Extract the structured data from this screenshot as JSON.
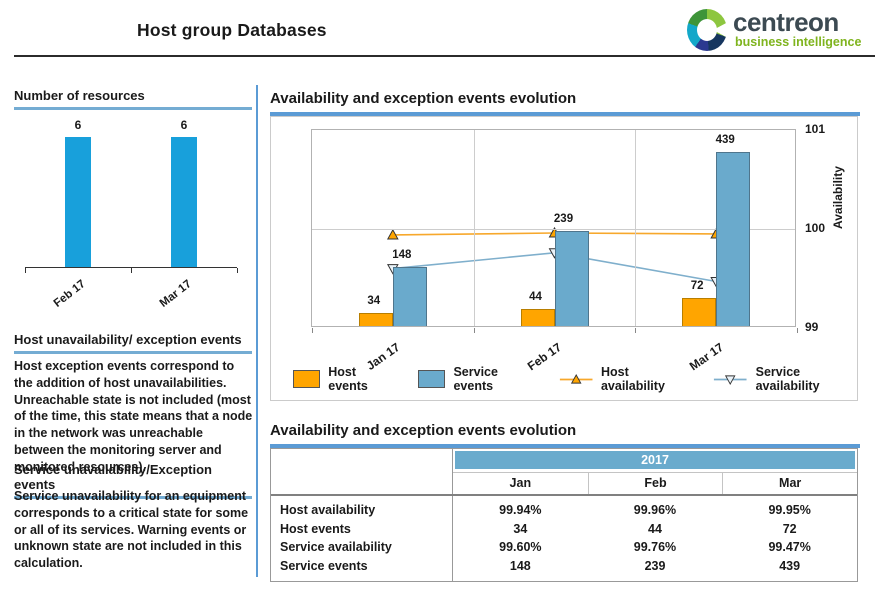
{
  "header": {
    "title_prefix": "Host group",
    "title_emphasis": "Databases",
    "logo": {
      "name": "centreon",
      "tagline": "business intelligence"
    }
  },
  "sidebar": {
    "resources_heading": "Number of resources",
    "host_section": {
      "heading": "Host unavailability/ exception events",
      "body": "Host exception events correspond to the addition of host unavailabilities. Unreachable state is not included (most of the time, this state means that a node in the network was unreachable between the monitoring server and monitored resources)."
    },
    "service_section": {
      "heading": "Service unavailability/Exception events",
      "body": "Service unavailability for an equipment corresponds to a critical state for some or all of its services. Warning events or unknown state are not included in this calculation."
    }
  },
  "main": {
    "chart_title": "Availability and exception events evolution",
    "table_title": "Availability and exception events evolution"
  },
  "chart_data": [
    {
      "type": "bar",
      "title": "Number of resources",
      "categories": [
        "Feb 17",
        "Mar 17"
      ],
      "values": [
        6,
        6
      ],
      "ylim": [
        0,
        7
      ],
      "bar_color": "#18A0DB"
    },
    {
      "type": "bar",
      "title": "Availability and exception events evolution",
      "categories": [
        "Jan 17",
        "Feb 17",
        "Mar 17"
      ],
      "series": [
        {
          "name": "Host events",
          "kind": "bar",
          "values": [
            34,
            44,
            72
          ],
          "color": "#FFA500"
        },
        {
          "name": "Service events",
          "kind": "bar",
          "values": [
            148,
            239,
            439
          ],
          "color": "#6AAACC"
        },
        {
          "name": "Host availability",
          "kind": "line",
          "values": [
            99.94,
            99.96,
            99.95
          ],
          "color": "#F7A82C",
          "marker": "triangle-up",
          "marker_fill": "#FFA500"
        },
        {
          "name": "Service availability",
          "kind": "line",
          "values": [
            99.6,
            99.76,
            99.47
          ],
          "color": "#7FAFCC",
          "marker": "triangle-down",
          "marker_fill": "#EAF2F8"
        }
      ],
      "left_ylim": [
        0,
        500
      ],
      "right_axis": {
        "label": "Availability",
        "ticks": [
          99,
          100,
          101
        ],
        "ylim": [
          99,
          101
        ]
      },
      "grid": true,
      "legend_position": "bottom"
    },
    {
      "type": "table",
      "title": "Availability and exception events evolution",
      "year_header": "2017",
      "columns": [
        "Jan",
        "Feb",
        "Mar"
      ],
      "rows": [
        {
          "label": "Host availability",
          "values": [
            "99.94%",
            "99.96%",
            "99.95%"
          ]
        },
        {
          "label": "Host events",
          "values": [
            "34",
            "44",
            "72"
          ]
        },
        {
          "label": "Service availability",
          "values": [
            "99.60%",
            "99.76%",
            "99.47%"
          ]
        },
        {
          "label": "Service events",
          "values": [
            "148",
            "239",
            "439"
          ]
        }
      ]
    }
  ],
  "table": {
    "year_header": "2017",
    "columns": [
      "Jan",
      "Feb",
      "Mar"
    ],
    "rows": [
      {
        "label": "Host availability",
        "values": [
          "99.94%",
          "99.96%",
          "99.95%"
        ]
      },
      {
        "label": "Host events",
        "values": [
          "34",
          "44",
          "72"
        ]
      },
      {
        "label": "Service availability",
        "values": [
          "99.60%",
          "99.76%",
          "99.47%"
        ]
      },
      {
        "label": "Service events",
        "values": [
          "148",
          "239",
          "439"
        ]
      }
    ]
  },
  "colors": {
    "accent_blue": "#5B9BD5",
    "underline_blue": "#74ACD3",
    "resource_bar_blue": "#18A0DB",
    "host_orange": "#FFA500",
    "service_blue": "#6AAACC",
    "banner_blue": "#6AABCD",
    "brand_dark": "#3C4A52",
    "brand_green": "#7FB41E",
    "text_dark": "#1A1A1A"
  }
}
